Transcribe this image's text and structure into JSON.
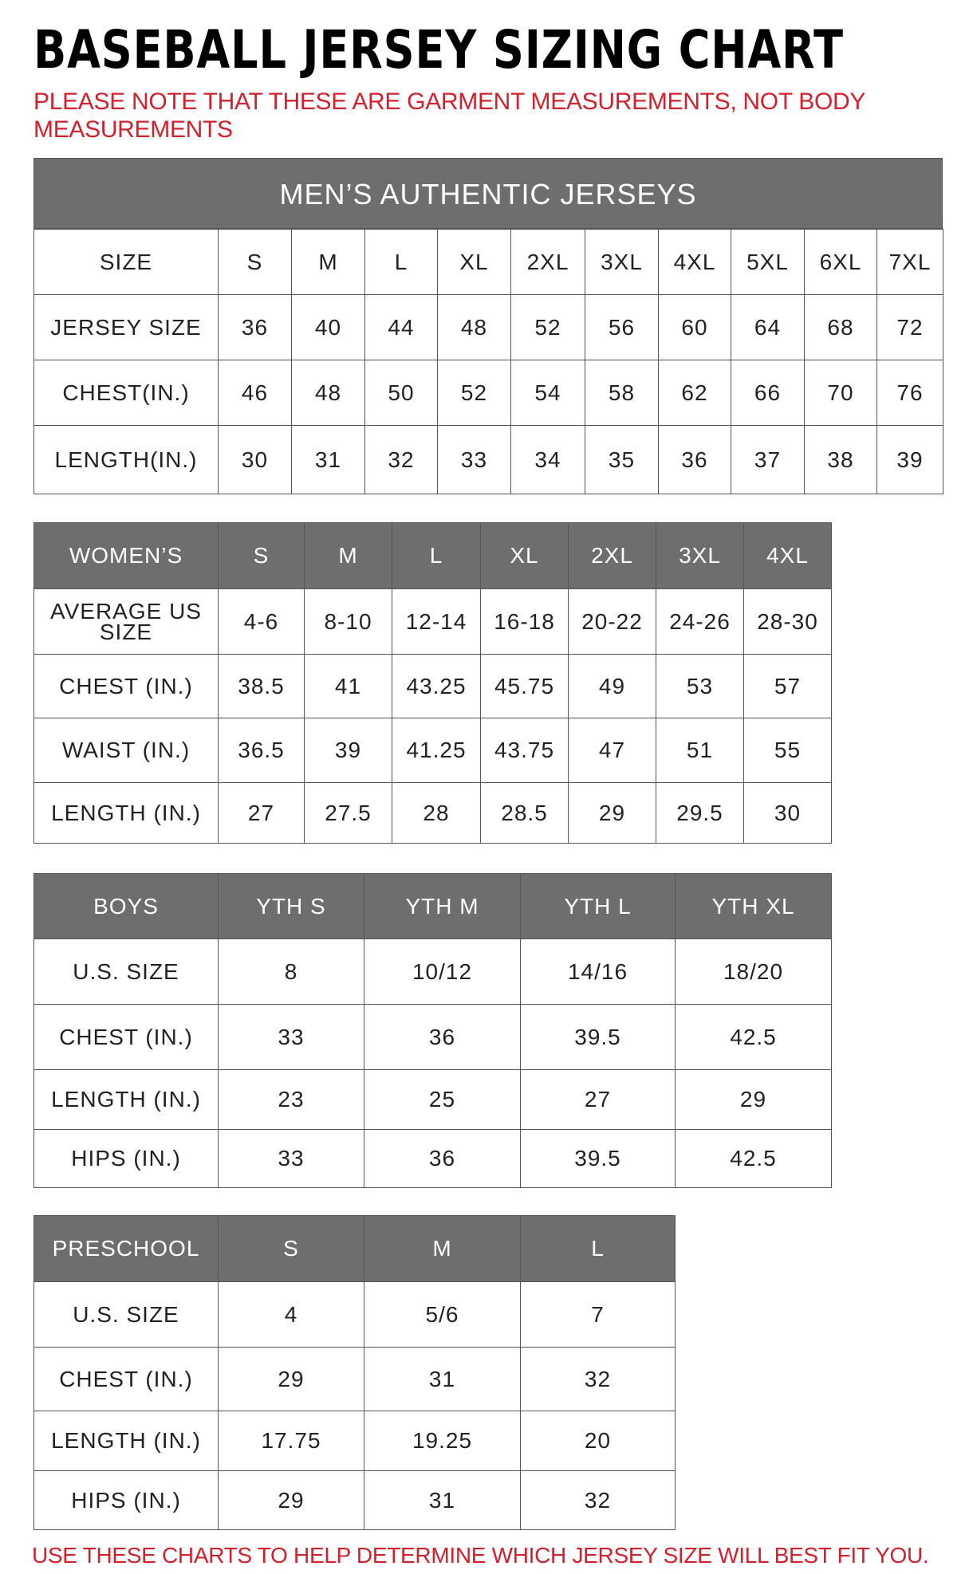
{
  "title": "BASEBALL JERSEY SIZING CHART",
  "note": "PLEASE NOTE THAT THESE ARE GARMENT MEASUREMENTS, NOT BODY MEASUREMENTS",
  "footer": "USE THESE CHARTS TO HELP DETERMINE WHICH JERSEY SIZE WILL BEST FIT YOU.",
  "colors": {
    "header_gray": "#6e6e6e",
    "note_red": "#d3202c"
  },
  "tables": {
    "mens": {
      "banner": "MEN’S AUTHENTIC JERSEYS",
      "header": [],
      "rows": [
        [
          "SIZE",
          "S",
          "M",
          "L",
          "XL",
          "2XL",
          "3XL",
          "4XL",
          "5XL",
          "6XL",
          "7XL"
        ],
        [
          "JERSEY SIZE",
          "36",
          "40",
          "44",
          "48",
          "52",
          "56",
          "60",
          "64",
          "68",
          "72"
        ],
        [
          "CHEST(IN.)",
          "46",
          "48",
          "50",
          "52",
          "54",
          "58",
          "62",
          "66",
          "70",
          "76"
        ],
        [
          "LENGTH(IN.)",
          "30",
          "31",
          "32",
          "33",
          "34",
          "35",
          "36",
          "37",
          "38",
          "39"
        ]
      ]
    },
    "womens": {
      "header": [
        "WOMEN’S",
        "S",
        "M",
        "L",
        "XL",
        "2XL",
        "3XL",
        "4XL"
      ],
      "rows": [
        [
          "AVERAGE US SIZE",
          "4-6",
          "8-10",
          "12-14",
          "16-18",
          "20-22",
          "24-26",
          "28-30"
        ],
        [
          "CHEST (IN.)",
          "38.5",
          "41",
          "43.25",
          "45.75",
          "49",
          "53",
          "57"
        ],
        [
          "WAIST (IN.)",
          "36.5",
          "39",
          "41.25",
          "43.75",
          "47",
          "51",
          "55"
        ],
        [
          "LENGTH (IN.)",
          "27",
          "27.5",
          "28",
          "28.5",
          "29",
          "29.5",
          "30"
        ]
      ]
    },
    "boys": {
      "header": [
        "BOYS",
        "YTH S",
        "YTH M",
        "YTH L",
        "YTH XL"
      ],
      "rows": [
        [
          "U.S. SIZE",
          "8",
          "10/12",
          "14/16",
          "18/20"
        ],
        [
          "CHEST (IN.)",
          "33",
          "36",
          "39.5",
          "42.5"
        ],
        [
          "LENGTH (IN.)",
          "23",
          "25",
          "27",
          "29"
        ],
        [
          "HIPS (IN.)",
          "33",
          "36",
          "39.5",
          "42.5"
        ]
      ]
    },
    "preschool": {
      "header": [
        "PRESCHOOL",
        "S",
        "M",
        "L"
      ],
      "rows": [
        [
          "U.S. SIZE",
          "4",
          "5/6",
          "7"
        ],
        [
          "CHEST (IN.)",
          "29",
          "31",
          "32"
        ],
        [
          "LENGTH (IN.)",
          "17.75",
          "19.25",
          "20"
        ],
        [
          "HIPS (IN.)",
          "29",
          "31",
          "32"
        ]
      ]
    }
  }
}
